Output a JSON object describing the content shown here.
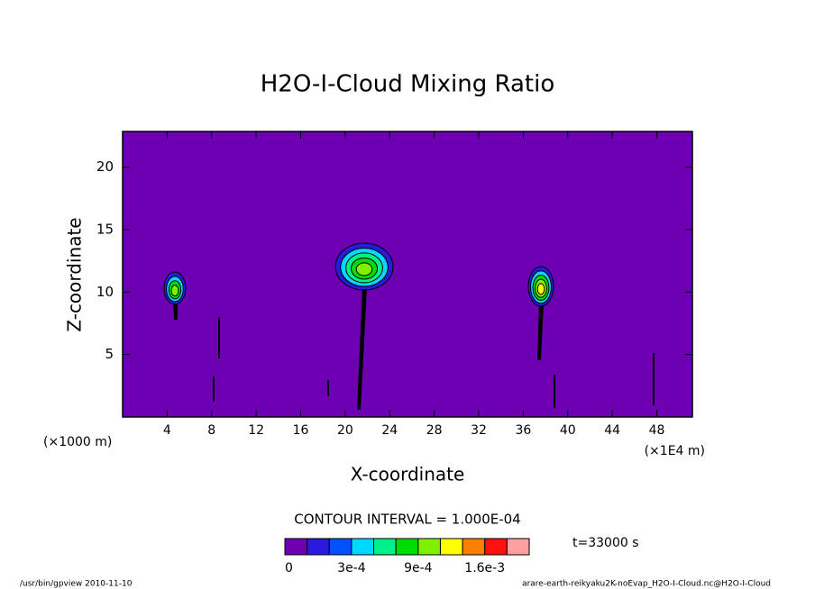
{
  "chart_data": {
    "type": "contour",
    "title": "H2O-I-Cloud Mixing Ratio",
    "x_label": "X-coordinate",
    "y_label": "Z-coordinate",
    "x_unit_left": "(×1000 m)",
    "x_unit_right": "(×1E4 m)",
    "xlim": [
      0,
      51.2
    ],
    "ylim": [
      0,
      22.86
    ],
    "xticks": [
      4,
      8,
      12,
      16,
      20,
      24,
      28,
      32,
      36,
      40,
      44,
      48
    ],
    "yticks": [
      5,
      10,
      15,
      20
    ],
    "contour_interval": "CONTOUR INTERVAL = 1.000E-04",
    "time": "t=33000 s",
    "colorbar": {
      "colors": [
        "#6e00b4",
        "#2a1adc",
        "#0050ff",
        "#00d8ff",
        "#00f08c",
        "#00dc00",
        "#80f000",
        "#ffff00",
        "#ff8000",
        "#ff1010",
        "#ffa0a0"
      ],
      "levels": [
        0,
        0.0001,
        0.0002,
        0.0003,
        0.0005,
        0.0007,
        0.0009,
        0.0011,
        0.0013,
        0.0016,
        0.0019
      ],
      "ticks": [
        0,
        {
          "value": 0.0003,
          "label": "3e-4"
        },
        {
          "value": 0.0009,
          "label": "9e-4"
        },
        {
          "value": 0.0016,
          "label": "1.6e-3"
        }
      ]
    },
    "footer_left": "/usr/bin/gpview  2010-11-10",
    "footer_right": "arare-earth-reikyaku2K-noEvap_H2O-I-Cloud.nc@H2O-I-Cloud"
  }
}
